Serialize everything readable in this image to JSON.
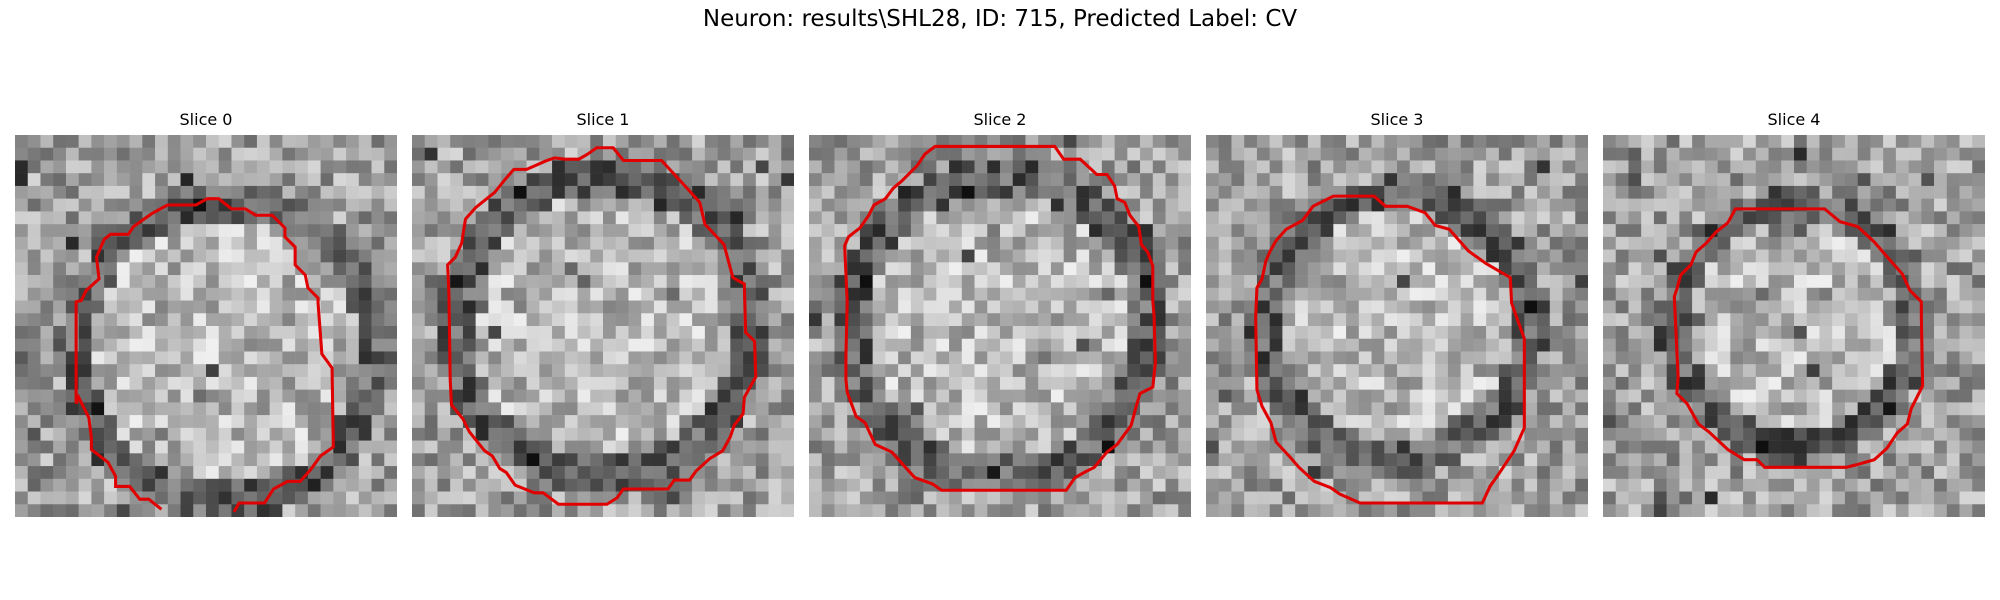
{
  "figure": {
    "title": "Neuron: results\\SHL28, ID: 715, Predicted Label: CV"
  },
  "slices": [
    {
      "title": "Slice 0",
      "seed": 11,
      "contour_color": "#e00000"
    },
    {
      "title": "Slice 1",
      "seed": 23,
      "contour_color": "#e00000"
    },
    {
      "title": "Slice 2",
      "seed": 37,
      "contour_color": "#e00000"
    },
    {
      "title": "Slice 3",
      "seed": 53,
      "contour_color": "#e00000"
    },
    {
      "title": "Slice 4",
      "seed": 71,
      "contour_color": "#e00000"
    }
  ]
}
